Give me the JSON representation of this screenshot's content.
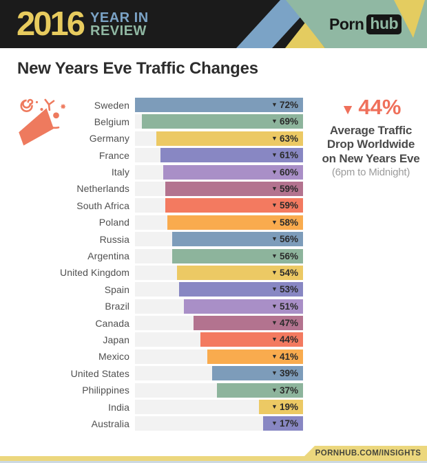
{
  "colors": {
    "header_bg": "#1b1b1b",
    "year_yellow": "#e7cb5e",
    "stripe_blue": "#7ba3c6",
    "panel_green": "#90b8a3",
    "stripe_yellow": "#e4cc60",
    "accent_coral": "#ef705b",
    "title_dark": "#2d2d2d",
    "label_gray": "#4f4f4f",
    "value_dark": "#2b2b2b",
    "track_gray": "#f2f2f2",
    "muted_gray": "#9b9b9b",
    "footer_yellow": "#ecd77d",
    "footer_text": "#45453b",
    "bottom_strip": "#ccd9e3"
  },
  "header": {
    "year": "2016",
    "subtitle_line1": "YEAR IN",
    "subtitle_line2": "REVIEW",
    "brand_part1": "Porn",
    "brand_part2": "hub"
  },
  "page_title": "New Years Eve Traffic Changes",
  "chart_data": {
    "type": "bar",
    "orientation": "horizontal",
    "title": "New Years Eve Traffic Changes",
    "categories": [
      "Sweden",
      "Belgium",
      "Germany",
      "France",
      "Italy",
      "Netherlands",
      "South Africa",
      "Poland",
      "Russia",
      "Argentina",
      "United Kingdom",
      "Spain",
      "Brazil",
      "Canada",
      "Japan",
      "Mexico",
      "United States",
      "Philippines",
      "India",
      "Australia"
    ],
    "values": [
      72,
      69,
      63,
      61,
      60,
      59,
      59,
      58,
      56,
      56,
      54,
      53,
      51,
      47,
      44,
      41,
      39,
      37,
      19,
      17
    ],
    "value_prefix": "▼",
    "value_suffix": "%",
    "axis_max": 72,
    "bars_aligned": "right",
    "grid": false,
    "legend": "none",
    "bar_colors": [
      "#7d9cba",
      "#8db49c",
      "#ecc964",
      "#8887c3",
      "#a98fc7",
      "#b3738f",
      "#f37a60",
      "#f9ab4e",
      "#7d9cba",
      "#8db49c",
      "#ecc964",
      "#8887c3",
      "#a98fc7",
      "#b3738f",
      "#f37a60",
      "#f9ab4e",
      "#7d9cba",
      "#8db49c",
      "#ecc964",
      "#8887c3"
    ]
  },
  "highlight": {
    "triangle": "▼",
    "value": "44%",
    "line1": "Average Traffic",
    "line2": "Drop Worldwide",
    "line3": "on New Years Eve",
    "subline": "(6pm to Midnight)"
  },
  "footer": {
    "label": "PORNHUB.COM/INSIGHTS"
  }
}
